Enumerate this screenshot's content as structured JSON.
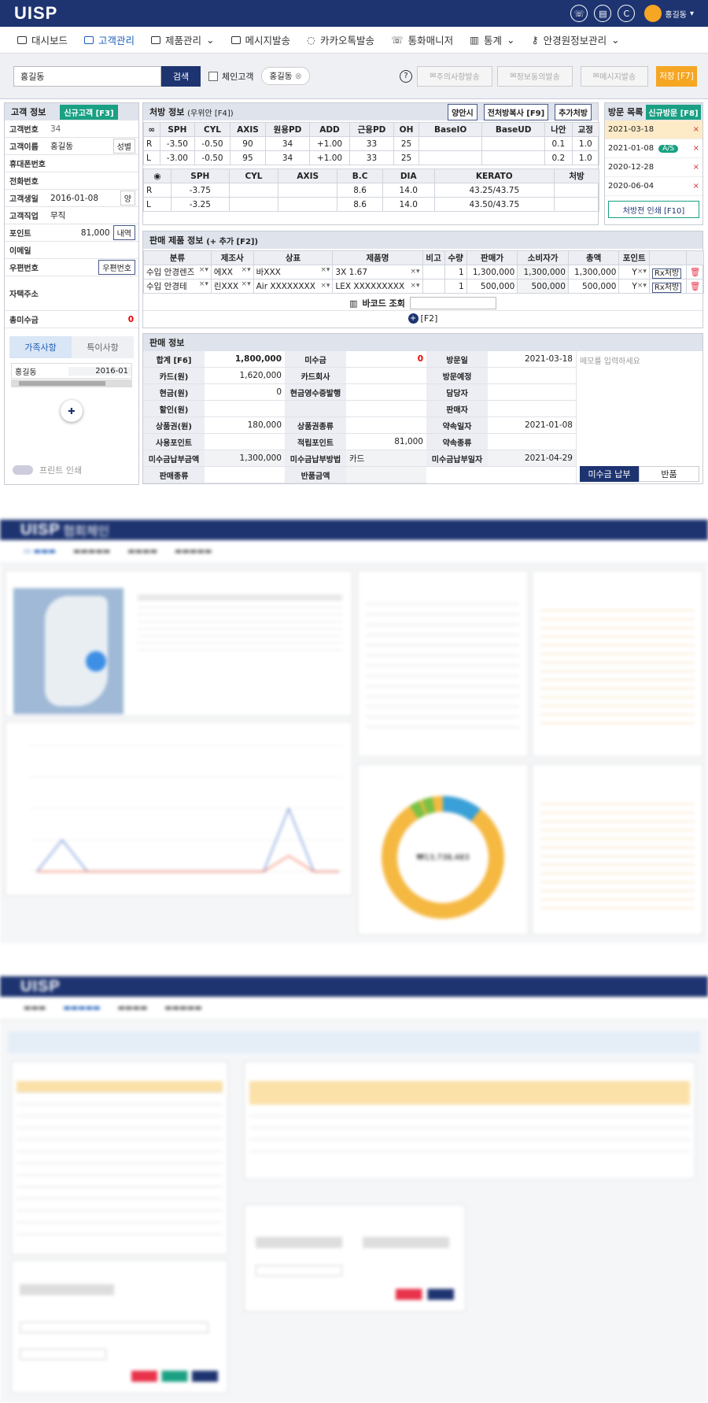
{
  "header": {
    "logo": "UISP",
    "user": "홍길동"
  },
  "nav": [
    "대시보드",
    "고객관리",
    "제품관리",
    "메시지발송",
    "카카오톡발송",
    "통화매니저",
    "통계",
    "안경원정보관리"
  ],
  "search": {
    "value": "홍길동",
    "button": "검색",
    "chain_label": "체인고객",
    "chip": "홍길동",
    "btn1": "주의사항발송",
    "btn2": "정보동의발송",
    "btn3": "메시지발송",
    "save": "저장 [F7]"
  },
  "customer": {
    "title": "고객 정보",
    "new_btn": "신규고객 [F3]",
    "rows": [
      {
        "label": "고객번호",
        "value": "34"
      },
      {
        "label": "고객이름",
        "value": "홍길동",
        "extra": "성별"
      },
      {
        "label": "휴대폰번호",
        "value": ""
      },
      {
        "label": "전화번호",
        "value": ""
      },
      {
        "label": "고객생일",
        "value": "2016-01-08",
        "extra": "양"
      },
      {
        "label": "고객직업",
        "value": "무직"
      },
      {
        "label": "포인트",
        "value": "81,000",
        "extra": "내역"
      },
      {
        "label": "이메일",
        "value": ""
      },
      {
        "label": "우편번호",
        "value": "",
        "extra": "우편번호"
      },
      {
        "label": "자택주소",
        "value": ""
      },
      {
        "label": "총미수금",
        "value": "0"
      }
    ],
    "tab1": "가족사항",
    "tab2": "특이사항",
    "family_name": "홍길동",
    "family_date": "2016-01",
    "print_label": "프린트 인쇄"
  },
  "rx": {
    "title": "처방 정보",
    "subtitle": "(우위안 [F4])",
    "btns": [
      "양안시",
      "전처방복사 [F9]",
      "추가처방"
    ],
    "headers": [
      "SPH",
      "CYL",
      "AXIS",
      "원용PD",
      "ADD",
      "근용PD",
      "OH",
      "BaseIO",
      "BaseUD",
      "나안",
      "교정"
    ],
    "rows": [
      {
        "eye": "R",
        "vals": [
          "-3.50",
          "-0.50",
          "90",
          "34",
          "+1.00",
          "33",
          "25",
          "",
          "",
          "0.1",
          "1.0"
        ]
      },
      {
        "eye": "L",
        "vals": [
          "-3.00",
          "-0.50",
          "95",
          "34",
          "+1.00",
          "33",
          "25",
          "",
          "",
          "0.2",
          "1.0"
        ]
      }
    ],
    "lens_headers": [
      "SPH",
      "CYL",
      "AXIS",
      "B.C",
      "DIA",
      "KERATO",
      "처방"
    ],
    "lens_rows": [
      {
        "eye": "R",
        "vals": [
          "-3.75",
          "",
          "",
          "8.6",
          "14.0",
          "43.25/43.75",
          ""
        ]
      },
      {
        "eye": "L",
        "vals": [
          "-3.25",
          "",
          "",
          "8.6",
          "14.0",
          "43.50/43.75",
          ""
        ]
      }
    ]
  },
  "visits": {
    "title": "방문 목록",
    "new_btn": "신규방문 [F8]",
    "items": [
      "2021-03-18",
      "2021-01-08",
      "2020-12-28",
      "2020-06-04"
    ],
    "as_badge": "A/S",
    "print_btn": "처방전 인쇄 [F10]"
  },
  "products": {
    "title": "판매 제품 정보",
    "add": "(+ 추가 [F2])",
    "headers": [
      "분류",
      "제조사",
      "상표",
      "제품명",
      "비고",
      "수량",
      "판매가",
      "소비자가",
      "총액",
      "포인트"
    ],
    "rows": [
      {
        "vals": [
          "수입 안경렌즈",
          "에XX",
          "바XXX",
          "3X 1.67",
          "",
          "1",
          "1,300,000",
          "1,300,000",
          "1,300,000",
          "Y"
        ],
        "rx": "Rx처방"
      },
      {
        "vals": [
          "수입 안경테",
          "린XXX",
          "Air XXXXXXXX",
          "LEX XXXXXXXXX",
          "",
          "1",
          "500,000",
          "500,000",
          "500,000",
          "Y"
        ],
        "rx": "Rx처방"
      }
    ],
    "barcode": "바코드 조회",
    "f2": "[F2]"
  },
  "sales": {
    "title": "판매 정보",
    "col1": [
      {
        "label": "합계 [F6]",
        "value": "1,800,000"
      },
      {
        "label": "카드(원)",
        "value": "1,620,000"
      },
      {
        "label": "현금(원)",
        "value": "0"
      },
      {
        "label": "할인(원)",
        "value": ""
      },
      {
        "label": "상품권(원)",
        "value": "180,000"
      },
      {
        "label": "사용포인트",
        "value": ""
      },
      {
        "label": "미수금납부금액",
        "value": "1,300,000"
      },
      {
        "label": "판매종류",
        "value": ""
      }
    ],
    "col2": [
      {
        "label": "미수금",
        "value": "0"
      },
      {
        "label": "카드회사",
        "value": ""
      },
      {
        "label": "현금영수증발행",
        "value": ""
      },
      {
        "label": "",
        "value": ""
      },
      {
        "label": "상품권종류",
        "value": ""
      },
      {
        "label": "적립포인트",
        "value": "81,000"
      },
      {
        "label": "미수금납부방법",
        "value": "카드"
      },
      {
        "label": "반품금액",
        "value": ""
      }
    ],
    "col3": [
      {
        "label": "방문일",
        "value": "2021-03-18"
      },
      {
        "label": "방문예정",
        "value": ""
      },
      {
        "label": "담당자",
        "value": ""
      },
      {
        "label": "판매자",
        "value": ""
      },
      {
        "label": "약속일자",
        "value": "2021-01-08"
      },
      {
        "label": "약속종류",
        "value": ""
      },
      {
        "label": "미수금납부일자",
        "value": "2021-04-29"
      }
    ],
    "memo": "메모를 입력하세요",
    "pay_btn": "미수금 납부",
    "return_btn": "반품"
  },
  "shot2": {
    "logo": "UISP",
    "logo_suffix": "협회체인",
    "donut_value": "₩13,738,483",
    "colors": {
      "donut_main": "#f5b942",
      "donut_blue": "#3aa0d8",
      "donut_green": "#7ac143"
    }
  },
  "shot3": {
    "logo": "UISP"
  }
}
